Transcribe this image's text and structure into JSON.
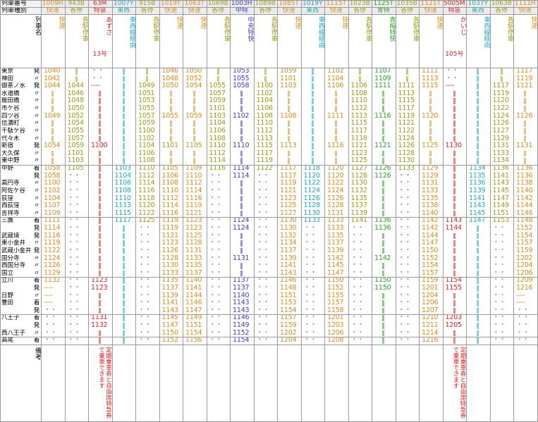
{
  "header": {
    "row1_label": "列車番号",
    "row2_label": "列車種別",
    "row3_label": "列車名",
    "remarks_label": "備考"
  },
  "trains": [
    {
      "num": "1009H",
      "type": "快速",
      "color": "#d98b1c",
      "name": "快速",
      "note": ""
    },
    {
      "num": "943B",
      "type": "各停",
      "color": "#9a9a18",
      "name": "各駅停車",
      "note": ""
    },
    {
      "num": "63M",
      "type": "特急",
      "color": "#e02020",
      "name": "あずさ",
      "name2": "13号",
      "note": "定期乗車券と自由席特急券で乗車できます"
    },
    {
      "num": "1007Y",
      "type": "東西",
      "color": "#1ea7c0",
      "name": "東西線経由",
      "note": ""
    },
    {
      "num": "915B",
      "type": "各停",
      "color": "#9a9a18",
      "name": "各駅停車",
      "note": ""
    },
    {
      "num": "1019T",
      "type": "快速",
      "color": "#d98b1c",
      "name": "快速",
      "note": ""
    },
    {
      "num": "1063T",
      "type": "快速",
      "color": "#d98b1c",
      "name": "快速",
      "note": ""
    },
    {
      "num": "1069B",
      "type": "各停",
      "color": "#9a9a18",
      "name": "各駅停車",
      "note": ""
    },
    {
      "num": "1003H",
      "type": "中特",
      "color": "#3a3ad0",
      "name": "中央特快",
      "note": ""
    },
    {
      "num": "1089B",
      "type": "各停",
      "color": "#9a9a18",
      "name": "各駅停車",
      "note": ""
    },
    {
      "num": "1085T",
      "type": "快速",
      "color": "#d98b1c",
      "name": "快速",
      "note": ""
    },
    {
      "num": "1019Y",
      "type": "東西",
      "color": "#1ea7c0",
      "name": "東西線経由",
      "note": ""
    },
    {
      "num": "1115T",
      "type": "快速",
      "color": "#d98b1c",
      "name": "快速",
      "note": ""
    },
    {
      "num": "1023B",
      "type": "各停",
      "color": "#9a9a18",
      "name": "各駅停車",
      "note": ""
    },
    {
      "num": "1125T",
      "type": "青特",
      "color": "#2aa02a",
      "name": "青梅特快",
      "note": ""
    },
    {
      "num": "1035B",
      "type": "各停",
      "color": "#9a9a18",
      "name": "各駅停車",
      "note": ""
    },
    {
      "num": "1121T",
      "type": "快速",
      "color": "#d98b1c",
      "name": "快速",
      "note": ""
    },
    {
      "num": "5005M",
      "type": "特急",
      "color": "#e02020",
      "name": "かいじ",
      "name2": "105号",
      "note": "定期乗車券と自由席特急券で乗車できます"
    },
    {
      "num": "1037Y",
      "type": "東西",
      "color": "#1ea7c0",
      "name": "東西線経由",
      "note": ""
    },
    {
      "num": "1063B",
      "type": "各停",
      "color": "#9a9a18",
      "name": "各駅停車",
      "note": ""
    },
    {
      "num": "1111H",
      "type": "快速",
      "color": "#d98b1c",
      "name": "快速",
      "note": ""
    }
  ],
  "stations": [
    {
      "name": "東京",
      "io": "発"
    },
    {
      "name": "神田",
      "io": "〃"
    },
    {
      "name": "御茶ノ水",
      "io": "発"
    },
    {
      "name": "水道橋",
      "io": "〃"
    },
    {
      "name": "飯田橋",
      "io": "〃"
    },
    {
      "name": "市ケ谷",
      "io": "〃"
    },
    {
      "name": "四ツ谷",
      "io": "〃"
    },
    {
      "name": "信濃町",
      "io": "〃"
    },
    {
      "name": "千駄ケ谷",
      "io": "〃"
    },
    {
      "name": "代々木",
      "io": "〃"
    },
    {
      "name": "新宿",
      "io": "発"
    },
    {
      "name": "大久保",
      "io": "〃"
    },
    {
      "name": "東中野",
      "io": "〃"
    },
    {
      "name": "中野",
      "io": "着"
    },
    {
      "name": "",
      "io": "発"
    },
    {
      "name": "高円寺",
      "io": "〃"
    },
    {
      "name": "阿佐ケ谷",
      "io": "〃"
    },
    {
      "name": "荻窪",
      "io": "〃"
    },
    {
      "name": "西荻窪",
      "io": "〃"
    },
    {
      "name": "吉祥寺",
      "io": "〃"
    },
    {
      "name": "三鷹",
      "io": "着"
    },
    {
      "name": "",
      "io": "発"
    },
    {
      "name": "武蔵境",
      "io": "発"
    },
    {
      "name": "東小金井",
      "io": "〃"
    },
    {
      "name": "武蔵小金井",
      "io": "発"
    },
    {
      "name": "国分寺",
      "io": "〃"
    },
    {
      "name": "西国分寺",
      "io": "〃"
    },
    {
      "name": "国立",
      "io": "〃"
    },
    {
      "name": "立川",
      "io": "着"
    },
    {
      "name": "",
      "io": "発"
    },
    {
      "name": "日野",
      "io": "〃"
    },
    {
      "name": "豊田",
      "io": "着"
    },
    {
      "name": "",
      "io": "発"
    },
    {
      "name": "八王子",
      "io": "着"
    },
    {
      "name": "",
      "io": "発"
    },
    {
      "name": "西八王子",
      "io": "〃"
    },
    {
      "name": "高尾",
      "io": "着"
    }
  ],
  "times": [
    [
      "1040",
      "",
      "・・",
      "",
      "",
      "1046",
      "1050",
      "",
      "1053",
      "",
      "1059",
      "",
      "1102",
      "",
      "1107",
      "",
      "1111",
      "・・",
      "",
      "",
      "1117"
    ],
    [
      "1042",
      "",
      "・・",
      "",
      "",
      "1048",
      "1052",
      "",
      "1055",
      "",
      "1101",
      "",
      "1104",
      "",
      "1109",
      "",
      "1113",
      "・・",
      "",
      "",
      "1119"
    ],
    [
      "1044",
      "1044",
      "----",
      "",
      "1049",
      "1050",
      "1054",
      "1055",
      "1058",
      "1100",
      "1103",
      "",
      "1106",
      "1106",
      "1111",
      "1111",
      "1115",
      "----",
      "",
      "1117",
      "1121"
    ],
    [
      "",
      "1046",
      "",
      "",
      "1051",
      "",
      "",
      "1057",
      "",
      "1102",
      "",
      "",
      "",
      "1108",
      "",
      "1113",
      "",
      "",
      "",
      "1119",
      ""
    ],
    [
      "",
      "1048",
      "",
      "",
      "1053",
      "",
      "",
      "1059",
      "",
      "1104",
      "",
      "",
      "",
      "1110",
      "",
      "1115",
      "",
      "",
      "",
      "1120",
      ""
    ],
    [
      "",
      "1050",
      "",
      "",
      "1055",
      "",
      "",
      "1101",
      "",
      "1106",
      "",
      "",
      "",
      "1112",
      "",
      "1117",
      "",
      "",
      "",
      "1122",
      ""
    ],
    [
      "1049",
      "1052",
      "",
      "",
      "1057",
      "1055",
      "1059",
      "1103",
      "1102",
      "1108",
      "1108",
      "",
      "1111",
      "1113",
      "1116",
      "1119",
      "1120",
      "",
      "",
      "1124",
      "1126"
    ],
    [
      "",
      "1054",
      "",
      "",
      "1059",
      "",
      "",
      "1104",
      "",
      "1110",
      "",
      "",
      "",
      "1115",
      "",
      "1121",
      "",
      "",
      "",
      "1126",
      ""
    ],
    [
      "",
      "1055",
      "",
      "",
      "1100",
      "",
      "",
      "1106",
      "",
      "1112",
      "",
      "",
      "",
      "1117",
      "",
      "1122",
      "",
      "",
      "",
      "1127",
      ""
    ],
    [
      "",
      "1057",
      "",
      "",
      "1102",
      "",
      "",
      "1108",
      "",
      "1113",
      "",
      "",
      "",
      "1118",
      "",
      "1124",
      "",
      "",
      "",
      "1129",
      ""
    ],
    [
      "1054",
      "1059",
      "1100",
      "",
      "1104",
      "1101",
      "1105",
      "1110",
      "1110",
      "1115",
      "1113",
      "",
      "1116",
      "1121",
      "1121",
      "1126",
      "1125",
      "1130",
      "",
      "1131",
      "1131"
    ],
    [
      "",
      "1101",
      "",
      "",
      "1106",
      "",
      "",
      "1112",
      "",
      "1117",
      "",
      "",
      "",
      "1123",
      "",
      "1128",
      "",
      "",
      "",
      "1133",
      ""
    ],
    [
      "",
      "1103",
      "",
      "",
      "1108",
      "",
      "",
      "1114",
      "",
      "1119",
      "",
      "",
      "",
      "1125",
      "",
      "1130",
      "",
      "",
      "",
      "1134",
      ""
    ],
    [
      "1058",
      "1105",
      "",
      "1103",
      "1110",
      "1105",
      "1109",
      "1116",
      "1114",
      "1122",
      "1117",
      "1118",
      "1120",
      "1127",
      "1126",
      "1133",
      "1129",
      "",
      "1134",
      "1136",
      "1136"
    ],
    [
      "1058",
      "・・",
      "",
      "1104",
      "1112",
      "1106",
      "1110",
      "・・",
      "1114",
      "・・",
      "1117",
      "1120",
      "1120",
      "1128",
      "1126",
      "・・",
      "1129",
      "",
      "1135",
      "1141",
      "1136"
    ],
    [
      "1100",
      "・・",
      "",
      "1106",
      "1114",
      "1108",
      "1112",
      "・・",
      "",
      "・・",
      "1119",
      "1122",
      "1122",
      "1130",
      "",
      "・・",
      "1131",
      "",
      "1136",
      "1143",
      "1138"
    ],
    [
      "1102",
      "・・",
      "",
      "1108",
      "1116",
      "1110",
      "1114",
      "・・",
      "",
      "・・",
      "1121",
      "1124",
      "1124",
      "1132",
      "",
      "・・",
      "1133",
      "",
      "1139",
      "1145",
      "1140"
    ],
    [
      "1104",
      "・・",
      "",
      "1110",
      "1118",
      "1112",
      "1116",
      "・・",
      "",
      "・・",
      "1123",
      "1126",
      "1126",
      "1135",
      "",
      "・・",
      "1135",
      "",
      "1141",
      "1147",
      "1142"
    ],
    [
      "1107",
      "・・",
      "",
      "1113",
      "1120",
      "1114",
      "1119",
      "・・",
      "",
      "・・",
      "1125",
      "1128",
      "1128",
      "1137",
      "",
      "・・",
      "1138",
      "",
      "1143",
      "1149",
      "1144"
    ],
    [
      "1109",
      "・・",
      "",
      "1115",
      "1122",
      "1116",
      "1121",
      "・・",
      "",
      "・・",
      "1127",
      "1130",
      "1131",
      "1139",
      "",
      "・・",
      "1140",
      "",
      "1145",
      "1151",
      "1146"
    ],
    [
      "1111",
      "・・",
      "",
      "1117",
      "1125",
      "1119",
      "1123",
      "・・",
      "1124",
      "・・",
      "1130",
      "1133",
      "1133",
      "1141",
      "1136",
      "・・",
      "1142",
      "1143",
      "1147",
      "1153",
      "1148"
    ],
    [
      "1114",
      "・・",
      "",
      "",
      "・・",
      "1119",
      "1123",
      "・・",
      "1124",
      "・・",
      "1130",
      "・・",
      "1133",
      "・・",
      "1136",
      "・・",
      "1142",
      "1144",
      "",
      "・・",
      "1152"
    ],
    [
      "1116",
      "・・",
      "",
      "",
      "・・",
      "1121",
      "1125",
      "・・",
      "",
      "・・",
      "1132",
      "・・",
      "1135",
      "・・",
      "",
      "・・",
      "1144",
      "",
      "",
      "・・",
      "1154"
    ],
    [
      "1119",
      "・・",
      "",
      "",
      "・・",
      "1123",
      "1128",
      "・・",
      "",
      "・・",
      "1134",
      "・・",
      "1137",
      "・・",
      "",
      "・・",
      "1147",
      "",
      "",
      "・・",
      "1157"
    ],
    [
      "1122",
      "・・",
      "",
      "",
      "・・",
      "1126",
      "1131",
      "・・",
      "",
      "・・",
      "1137",
      "・・",
      "1139",
      "・・",
      "",
      "・・",
      "1150",
      "",
      "",
      "・・",
      "1159"
    ],
    [
      "1124",
      "・・",
      "",
      "",
      "・・",
      "1128",
      "1133",
      "・・",
      "1131",
      "・・",
      "1139",
      "・・",
      "1142",
      "・・",
      "1142",
      "・・",
      "1152",
      "",
      "",
      "・・",
      "1202"
    ],
    [
      "1126",
      "・・",
      "",
      "",
      "・・",
      "1130",
      "1135",
      "・・",
      "",
      "・・",
      "1141",
      "・・",
      "1145",
      "・・",
      "",
      "・・",
      "1154",
      "",
      "",
      "・・",
      "1204"
    ],
    [
      "1129",
      "・・",
      "",
      "",
      "・・",
      "1133",
      "1137",
      "・・",
      "",
      "・・",
      "1143",
      "・・",
      "1147",
      "・・",
      "",
      "・・",
      "1157",
      "",
      "",
      "・・",
      "1206"
    ],
    [
      "1132",
      "・・",
      "1123",
      "",
      "・・",
      "1135",
      "1140",
      "・・",
      "1137",
      "・・",
      "1146",
      "・・",
      "1150",
      "・・",
      "1150",
      "・・",
      "1159",
      "1154",
      "",
      "・・",
      "1209"
    ],
    [
      "----",
      "・・",
      "1123",
      "",
      "・・",
      "1137",
      "1141",
      "・・",
      "1137",
      "・・",
      "1148",
      "・・",
      "1152",
      "・・",
      "1150",
      "・・",
      "1201",
      "1155",
      "",
      "・・",
      "1216"
    ],
    [
      "----",
      "・・",
      "",
      "",
      "・・",
      "1139",
      "1144",
      "・・",
      "1140",
      "・・",
      "1151",
      "・・",
      "1155",
      "・・",
      "",
      "・・",
      "1204",
      "",
      "",
      "・・",
      "----"
    ],
    [
      "----",
      "・・",
      "",
      "",
      "・・",
      "1141",
      "1146",
      "・・",
      "1143",
      "・・",
      "1153",
      "・・",
      "1157",
      "・・",
      "",
      "・・",
      "1206",
      "",
      "",
      "・・",
      "----"
    ],
    [
      "・・",
      "・・",
      "",
      "",
      "・・",
      "1143",
      "1147",
      "・・",
      "1143",
      "・・",
      "1154",
      "・・",
      "1158",
      "・・",
      "",
      "・・",
      "1207",
      "",
      "",
      "・・",
      "・・"
    ],
    [
      "・・",
      "・・",
      "1131",
      "",
      "・・",
      "1145",
      "1149",
      "・・",
      "1146",
      "・・",
      "1157",
      "・・",
      "1201",
      "・・",
      "",
      "・・",
      "1210",
      "1203",
      "",
      "・・",
      "・・"
    ],
    [
      "・・",
      "・・",
      "1132",
      "",
      "・・",
      "1147",
      "1151",
      "・・",
      "1149",
      "・・",
      "1159",
      "・・",
      "1203",
      "・・",
      "",
      "・・",
      "1211",
      "1205",
      "",
      "・・",
      "・・"
    ],
    [
      "・・",
      "・・",
      "",
      "",
      "・・",
      "1150",
      "1154",
      "・・",
      "1152",
      "・・",
      "1202",
      "・・",
      "1206",
      "・・",
      "",
      "・・",
      "1214",
      "",
      "",
      "・・",
      "・・"
    ],
    [
      "・・",
      "・・",
      "",
      "",
      "・・",
      "1152",
      "1156",
      "・・",
      "1154",
      "・・",
      "1204",
      "・・",
      "1208",
      "・・",
      "",
      "・・",
      "1216",
      "",
      "",
      "・・",
      "・・"
    ]
  ]
}
